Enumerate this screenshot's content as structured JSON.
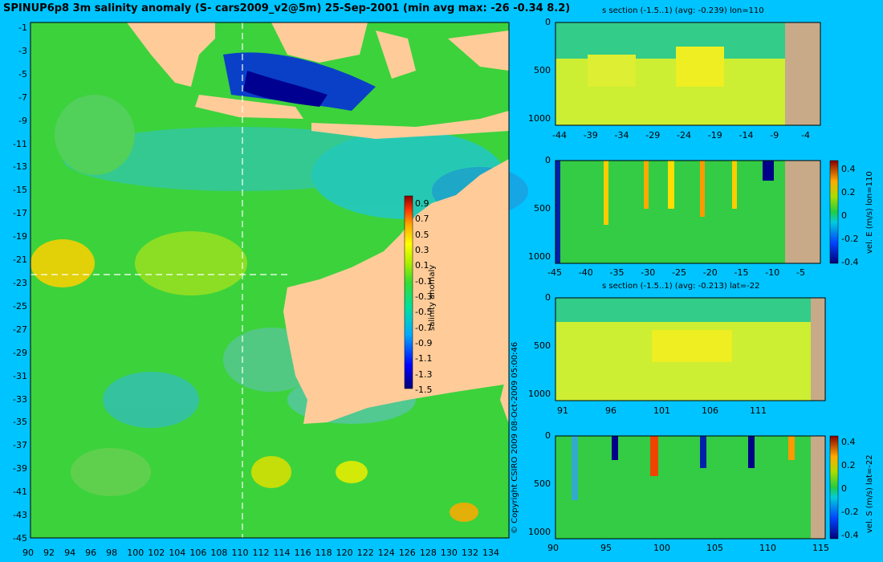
{
  "title": "SPINUP6p8 3m salinity anomaly (S- cars2009_v2@5m) 25-Sep-2001 (min avg max: -26 -0.34 8.2)",
  "copyright": "© Copyright CSIRO 2009   08-Oct-2009 05:00:46",
  "colors": {
    "background": "#00c4ff",
    "land": "#ffcc99",
    "section_land": "#c8aa88"
  },
  "chart_data": [
    {
      "type": "heatmap",
      "name": "map",
      "x_ticks": [
        "90",
        "92",
        "94",
        "96",
        "98",
        "100",
        "102",
        "104",
        "106",
        "108",
        "110",
        "112",
        "114",
        "116",
        "118",
        "120",
        "122",
        "124",
        "126",
        "128",
        "130",
        "132",
        "134"
      ],
      "y_ticks": [
        "-1",
        "-3",
        "-5",
        "-7",
        "-9",
        "-11",
        "-13",
        "-15",
        "-17",
        "-19",
        "-21",
        "-23",
        "-25",
        "-27",
        "-29",
        "-31",
        "-33",
        "-35",
        "-37",
        "-39",
        "-41",
        "-43",
        "-45"
      ],
      "xlim": [
        90,
        135
      ],
      "ylim": [
        -45,
        0.5
      ],
      "crosshair": {
        "lon": 110,
        "lat": -22
      },
      "colorbar": {
        "label": "salinity anomaly",
        "ticks": [
          "0.9",
          "0.7",
          "0.5",
          "0.3",
          "0.1",
          "-0.1",
          "-0.3",
          "-0.5",
          "-0.7",
          "-0.9",
          "-1.1",
          "-1.3",
          "-1.5"
        ]
      }
    },
    {
      "type": "heatmap",
      "name": "panel1",
      "title": "s section (-1.5..1) (avg: -0.239) lon=110",
      "x_ticks": [
        "-44",
        "-39",
        "-34",
        "-29",
        "-24",
        "-19",
        "-14",
        "-9",
        "-4"
      ],
      "y_ticks": [
        "0",
        "500",
        "1000"
      ]
    },
    {
      "type": "heatmap",
      "name": "panel2",
      "title": "",
      "x_ticks": [
        "-45",
        "-40",
        "-35",
        "-30",
        "-25",
        "-20",
        "-15",
        "-10",
        "-5"
      ],
      "y_ticks": [
        "0",
        "500",
        "1000"
      ],
      "colorbar": {
        "label": "vel. E (m/s) lon=110",
        "ticks": [
          "0.4",
          "0.2",
          "0",
          "-0.2",
          "-0.4"
        ]
      }
    },
    {
      "type": "heatmap",
      "name": "panel3",
      "title": "s section (-1.5..1) (avg: -0.213) lat=-22",
      "x_ticks": [
        "91",
        "96",
        "101",
        "106",
        "111"
      ],
      "y_ticks": [
        "0",
        "500",
        "1000"
      ]
    },
    {
      "type": "heatmap",
      "name": "panel4",
      "title": "",
      "x_ticks": [
        "90",
        "95",
        "100",
        "105",
        "110",
        "115"
      ],
      "y_ticks": [
        "0",
        "500",
        "1000"
      ],
      "colorbar": {
        "label": "vel. S (m/s) lat=-22",
        "ticks": [
          "0.4",
          "0.2",
          "0",
          "-0.2",
          "-0.4"
        ]
      }
    }
  ]
}
